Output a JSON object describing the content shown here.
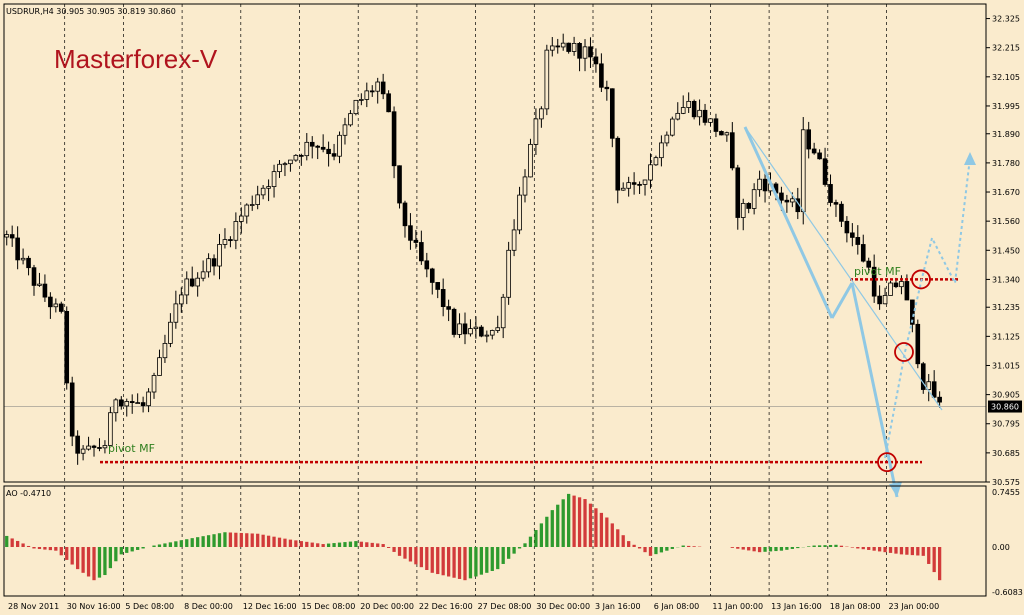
{
  "colors": {
    "background": "#faebcd",
    "grid": "#000000",
    "candle": "#000000",
    "brand": "#b0141e",
    "pivot_line": "#c00000",
    "pivot_text": "#2f7f1e",
    "arrow": "#8fc8e4",
    "ao_up": "#2e9a2e",
    "ao_down": "#d23a3a"
  },
  "header": {
    "symbol_info": "USDRUR,H4  30.905 30.905 30.819 30.860",
    "watermark": "Masterforex-V"
  },
  "chart_data": [
    {
      "type": "candlestick",
      "ylim": [
        30.575,
        32.38
      ],
      "yticks": [
        "32.325",
        "32.215",
        "32.105",
        "31.995",
        "31.890",
        "31.780",
        "31.670",
        "31.560",
        "31.450",
        "31.340",
        "31.235",
        "31.125",
        "31.015",
        "30.905",
        "30.795",
        "30.685",
        "30.575"
      ],
      "current_price": "30.860",
      "xticks": [
        "28 Nov 2011",
        "30 Nov 16:00",
        "5 Dec 08:00",
        "8 Dec 00:00",
        "12 Dec 16:00",
        "15 Dec 08:00",
        "20 Dec 00:00",
        "22 Dec 16:00",
        "27 Dec 08:00",
        "30 Dec 00:00",
        "3 Jan 16:00",
        "6 Jan 08:00",
        "11 Jan 00:00",
        "13 Jan 16:00",
        "18 Jan 08:00",
        "23 Jan 00:00"
      ],
      "bars": 180,
      "price_path": [
        [
          0,
          31.5
        ],
        [
          6,
          31.3
        ],
        [
          10,
          31.2
        ],
        [
          12,
          30.72
        ],
        [
          14,
          30.68
        ],
        [
          18,
          30.72
        ],
        [
          20,
          30.9
        ],
        [
          25,
          30.86
        ],
        [
          27,
          30.95
        ],
        [
          32,
          31.3
        ],
        [
          38,
          31.42
        ],
        [
          42,
          31.55
        ],
        [
          46,
          31.67
        ],
        [
          52,
          31.8
        ],
        [
          56,
          31.86
        ],
        [
          60,
          31.82
        ],
        [
          64,
          32.0
        ],
        [
          68,
          32.08
        ],
        [
          70,
          31.95
        ],
        [
          72,
          31.6
        ],
        [
          76,
          31.4
        ],
        [
          80,
          31.25
        ],
        [
          82,
          31.15
        ],
        [
          86,
          31.14
        ],
        [
          90,
          31.15
        ],
        [
          92,
          31.45
        ],
        [
          95,
          31.75
        ],
        [
          98,
          32.0
        ],
        [
          99,
          32.18
        ],
        [
          102,
          32.22
        ],
        [
          106,
          32.2
        ],
        [
          110,
          32.05
        ],
        [
          112,
          31.7
        ],
        [
          115,
          31.67
        ],
        [
          120,
          31.85
        ],
        [
          122,
          31.97
        ],
        [
          125,
          32.0
        ],
        [
          128,
          31.95
        ],
        [
          132,
          31.87
        ],
        [
          134,
          31.6
        ],
        [
          136,
          31.62
        ],
        [
          138,
          31.72
        ],
        [
          142,
          31.65
        ],
        [
          145,
          31.6
        ],
        [
          146,
          31.88
        ],
        [
          148,
          31.83
        ],
        [
          150,
          31.72
        ],
        [
          152,
          31.6
        ],
        [
          155,
          31.5
        ],
        [
          158,
          31.38
        ],
        [
          160,
          31.23
        ],
        [
          162,
          31.3
        ],
        [
          164,
          31.34
        ],
        [
          166,
          31.15
        ],
        [
          168,
          30.95
        ],
        [
          170,
          30.9
        ],
        [
          171,
          30.86
        ]
      ],
      "annotations": {
        "pivot_label": "pivot MF",
        "pivot_upper": 31.34,
        "pivot_lower": 30.65
      }
    },
    {
      "type": "bar",
      "title": "AO -0.4710",
      "ylim": [
        -0.6083,
        0.7455
      ],
      "yticks": [
        "0.7455",
        "0.00",
        "-0.6083"
      ],
      "ao_path": [
        [
          0,
          0.15
        ],
        [
          5,
          -0.02
        ],
        [
          9,
          -0.05
        ],
        [
          13,
          -0.3
        ],
        [
          16,
          -0.45
        ],
        [
          18,
          -0.38
        ],
        [
          21,
          -0.1
        ],
        [
          27,
          0.02
        ],
        [
          34,
          0.12
        ],
        [
          40,
          0.2
        ],
        [
          46,
          0.18
        ],
        [
          52,
          0.1
        ],
        [
          58,
          0.04
        ],
        [
          64,
          0.08
        ],
        [
          69,
          0.04
        ],
        [
          72,
          -0.12
        ],
        [
          78,
          -0.35
        ],
        [
          84,
          -0.45
        ],
        [
          90,
          -0.3
        ],
        [
          95,
          0.05
        ],
        [
          100,
          0.5
        ],
        [
          103,
          0.72
        ],
        [
          106,
          0.65
        ],
        [
          110,
          0.4
        ],
        [
          114,
          0.08
        ],
        [
          118,
          -0.12
        ],
        [
          124,
          0.02
        ],
        [
          128,
          0.0
        ],
        [
          132,
          0.0
        ],
        [
          138,
          -0.07
        ],
        [
          142,
          -0.05
        ],
        [
          148,
          0.02
        ],
        [
          152,
          0.03
        ],
        [
          156,
          -0.02
        ],
        [
          160,
          -0.06
        ],
        [
          164,
          -0.1
        ],
        [
          168,
          -0.12
        ],
        [
          171,
          -0.45
        ]
      ]
    }
  ]
}
